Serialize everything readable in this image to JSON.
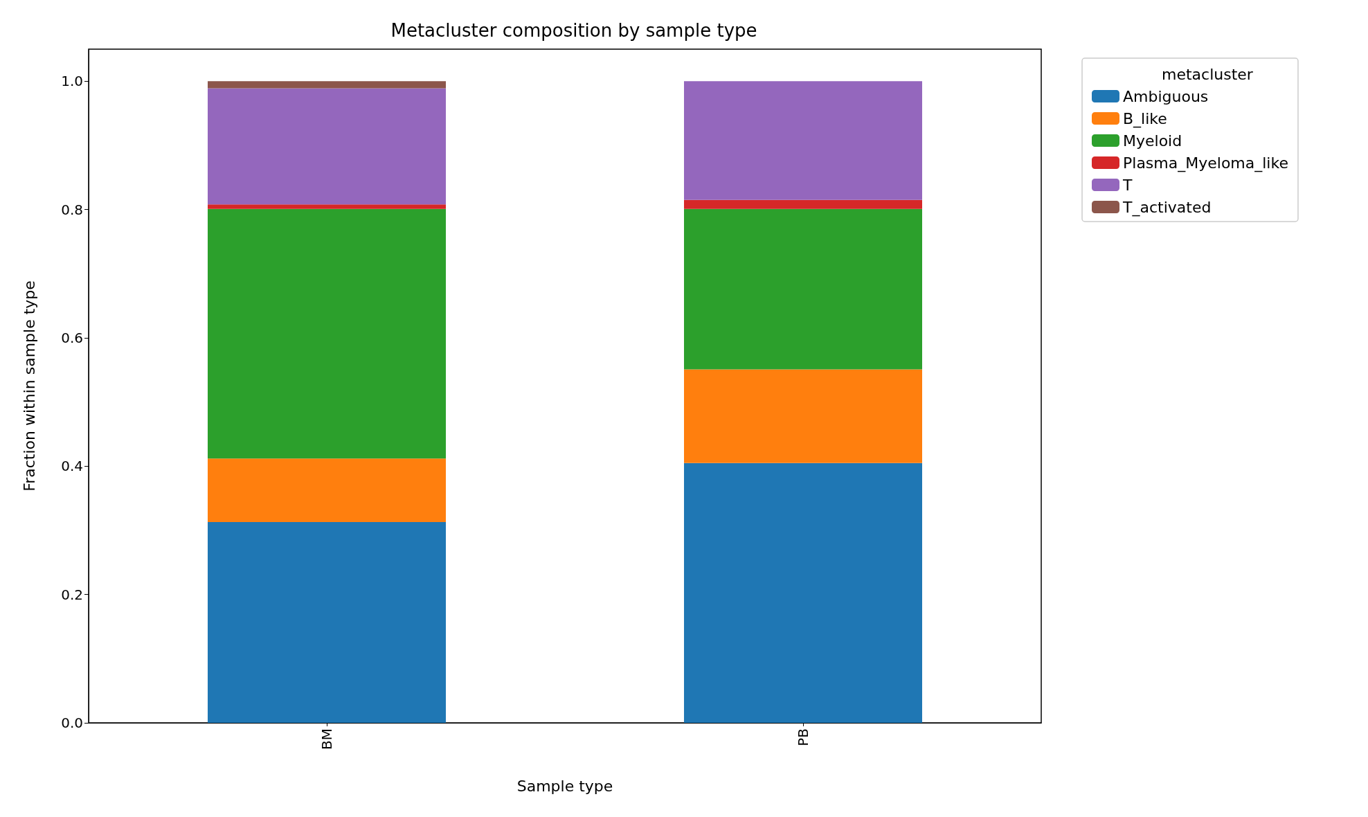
{
  "chart_data": {
    "type": "bar",
    "title": "Metacluster composition by sample type",
    "xlabel": "Sample type",
    "ylabel": "Fraction within sample type",
    "legend_title": "metacluster",
    "categories": [
      "BM",
      "PB"
    ],
    "stacked": true,
    "legend": "top right",
    "grid": false,
    "ylim": [
      0,
      1.05
    ],
    "yticks": [
      {
        "value": 0,
        "label": "0.0"
      },
      0.2,
      0.4,
      0.6,
      0.8,
      {
        "value": 1,
        "label": "1.0"
      }
    ],
    "series": [
      {
        "name": "Ambiguous",
        "color": "#1f77b4",
        "values": [
          0.313,
          0.405
        ]
      },
      {
        "name": "B_like",
        "color": "#ff7f0e",
        "values": [
          0.099,
          0.146
        ]
      },
      {
        "name": "Myeloid",
        "color": "#2ca02c",
        "values": [
          0.389,
          0.25
        ]
      },
      {
        "name": "Plasma_Myeloma_like",
        "color": "#d62728",
        "values": [
          0.007,
          0.014
        ]
      },
      {
        "name": "T",
        "color": "#9467bd",
        "values": [
          0.181,
          0.185
        ]
      },
      {
        "name": "T_activated",
        "color": "#8c564b",
        "values": [
          0.011,
          0
        ]
      }
    ]
  }
}
